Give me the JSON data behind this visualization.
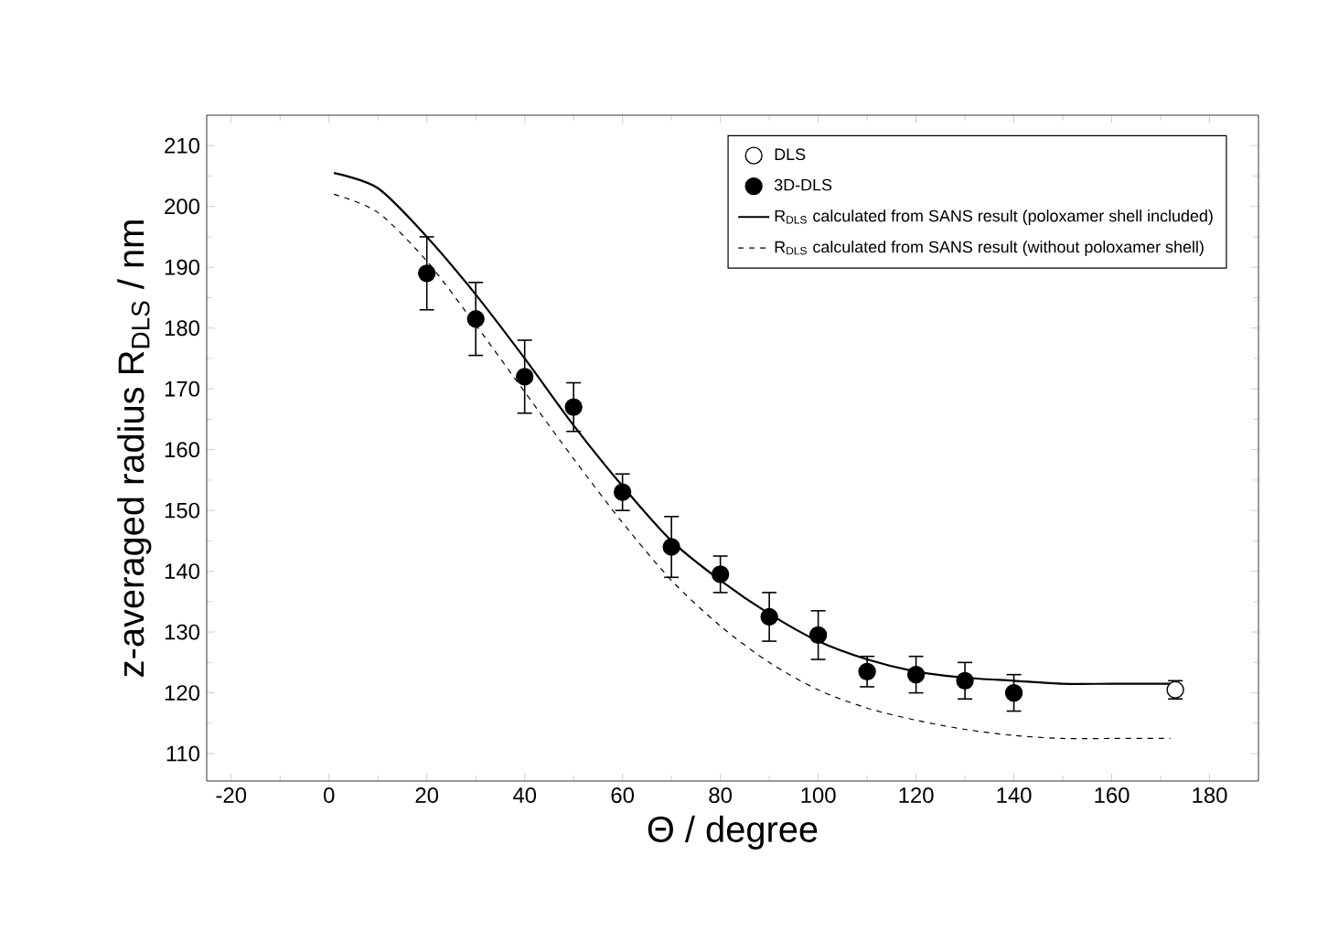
{
  "chart_data": {
    "type": "scatter",
    "xlabel": "Θ / degree",
    "ylabel": "z-averaged radius R$_{DLS}$ / nm",
    "xlim": [
      -25,
      190
    ],
    "ylim": [
      105.5,
      215
    ],
    "xticks": [
      -20,
      0,
      20,
      40,
      60,
      80,
      100,
      120,
      140,
      160,
      180
    ],
    "yticks": [
      110,
      120,
      130,
      140,
      150,
      160,
      170,
      180,
      190,
      200,
      210
    ],
    "grid": false,
    "legend": "top right",
    "series": [
      {
        "name": "DLS",
        "type": "scatter",
        "marker": "circle",
        "color": "#ffffff",
        "x": [
          173
        ],
        "values": [
          120.5
        ],
        "errors": [
          1.5
        ]
      },
      {
        "name": "3D-DLS",
        "type": "scatter",
        "marker": "circle",
        "color": "#000000",
        "x": [
          20,
          30,
          40,
          50,
          60,
          70,
          80,
          90,
          100,
          110,
          120,
          130,
          140
        ],
        "values": [
          189,
          181.5,
          172,
          167,
          153,
          144,
          139.5,
          132.5,
          129.5,
          123.5,
          123,
          122,
          120
        ],
        "errors": [
          6,
          6,
          6,
          4,
          3,
          5,
          3,
          4,
          4,
          2.5,
          3,
          3,
          3
        ]
      },
      {
        "name": "R$_{DLS}$ calculated from SANS result (poloxamer shell included)",
        "type": "line",
        "marker": "none",
        "line_style": "solid",
        "color": "#000000",
        "x": [
          1,
          10,
          20,
          30,
          40,
          50,
          60,
          70,
          80,
          90,
          100,
          110,
          120,
          130,
          140,
          150,
          160,
          172
        ],
        "values": [
          205.5,
          203,
          195,
          185.5,
          175,
          164,
          154,
          145,
          138.5,
          133,
          128.5,
          125.5,
          123.5,
          122.5,
          122,
          121.5,
          121.5,
          121.5
        ]
      },
      {
        "name": "R$_{DLS}$ calculated from SANS result (without poloxamer shell)",
        "type": "line",
        "marker": "none",
        "line_style": "dashed",
        "color": "#000000",
        "x": [
          1,
          10,
          20,
          30,
          40,
          50,
          60,
          70,
          80,
          90,
          100,
          110,
          120,
          130,
          140,
          150,
          160,
          172
        ],
        "values": [
          202,
          199,
          191,
          180.5,
          169.5,
          158.5,
          148,
          138.5,
          131,
          125,
          120.5,
          117.5,
          115.5,
          114,
          113,
          112.5,
          112.5,
          112.5
        ]
      }
    ]
  }
}
